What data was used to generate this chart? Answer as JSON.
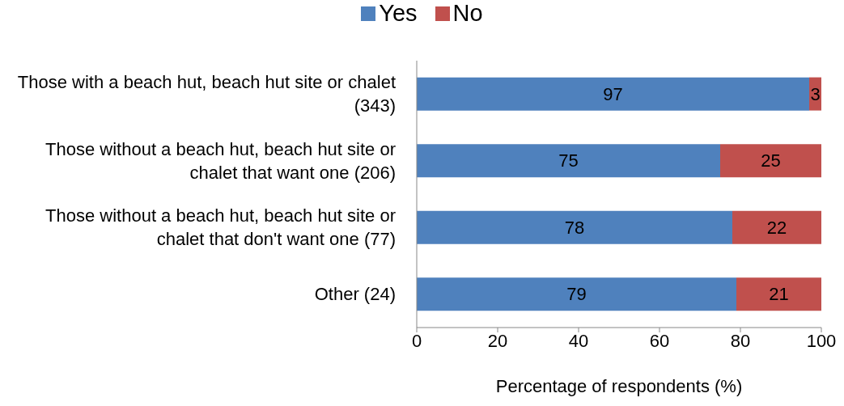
{
  "chart_data": {
    "type": "bar",
    "orientation": "horizontal",
    "stacked": true,
    "categories": [
      "Those with a beach hut, beach hut site or chalet (343)",
      "Those without a beach hut, beach hut site or chalet that want one (206)",
      "Those without a beach hut, beach hut site or chalet that don't want one (77)",
      "Other (24)"
    ],
    "series": [
      {
        "name": "Yes",
        "color": "#4f81bd",
        "values": [
          97,
          75,
          78,
          79
        ]
      },
      {
        "name": "No",
        "color": "#c0504d",
        "values": [
          3,
          25,
          22,
          21
        ]
      }
    ],
    "xlabel": "Percentage of respondents (%)",
    "xlim": [
      0,
      100
    ],
    "xticks": [
      0,
      20,
      40,
      60,
      80,
      100
    ],
    "grid": false,
    "legend": "top",
    "data_labels": true
  }
}
